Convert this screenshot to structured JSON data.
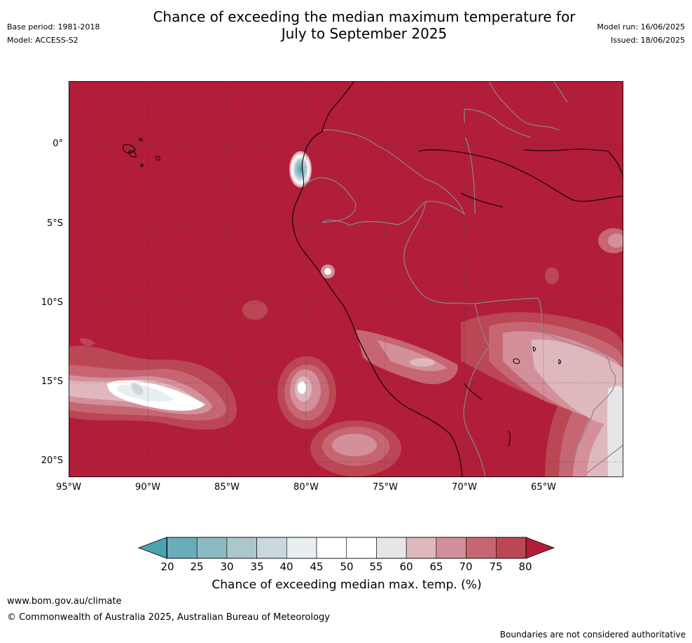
{
  "header": {
    "title_line1": "Chance of exceeding the median maximum temperature for",
    "title_line2": "July to September 2025",
    "base_period": "Base period: 1981-2018",
    "model": "Model: ACCESS-S2",
    "model_run": "Model run: 16/06/2025",
    "issued": "Issued: 18/06/2025"
  },
  "map": {
    "lat_labels": [
      "0°",
      "5°S",
      "10°S",
      "15°S",
      "20°S"
    ],
    "lon_labels": [
      "95°W",
      "90°W",
      "85°W",
      "80°W",
      "75°W",
      "70°W",
      "65°W"
    ],
    "background_category": ">80"
  },
  "colorbar": {
    "ticks": [
      "20",
      "25",
      "30",
      "35",
      "40",
      "45",
      "50",
      "55",
      "60",
      "65",
      "70",
      "75",
      "80"
    ],
    "colors": [
      "#4aa3b0",
      "#69adb9",
      "#8cbac4",
      "#abc7cc",
      "#c9d8da",
      "#e9eef0",
      "#ffffff",
      "#ffffff",
      "#e6e6e8",
      "#dfb8be",
      "#d4909a",
      "#c66672",
      "#bb4654",
      "#b21d3a"
    ],
    "label": "Chance of exceeding median max. temp. (%)"
  },
  "footer": {
    "website": "www.bom.gov.au/climate",
    "copyright": "© Commonwealth of Australia 2025, Australian Bureau of Meteorology",
    "disclaimer": "Boundaries are not considered authoritative"
  }
}
